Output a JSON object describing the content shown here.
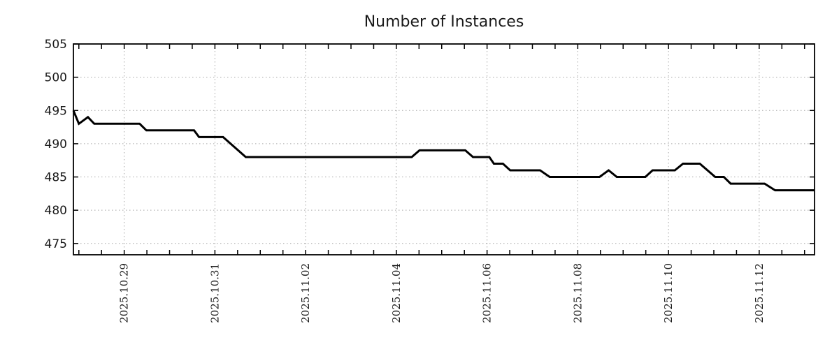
{
  "chart_data": {
    "type": "line",
    "title": "Number of Instances",
    "x_axis": {
      "unit": "days since 2025-10-27 00:00",
      "range": [
        0.88,
        17.22
      ],
      "major_ticks": [
        [
          2,
          "2025.10.29"
        ],
        [
          4,
          "2025.10.31"
        ],
        [
          6,
          "2025.11.02"
        ],
        [
          8,
          "2025.11.04"
        ],
        [
          10,
          "2025.11.06"
        ],
        [
          12,
          "2025.11.08"
        ],
        [
          14,
          "2025.11.10"
        ],
        [
          16,
          "2025.11.12"
        ]
      ],
      "minor_tick_interval_days": 0.5
    },
    "y_axis": {
      "range": [
        473.3,
        505
      ],
      "ticks": [
        475,
        480,
        485,
        490,
        495,
        500,
        505
      ]
    },
    "grid": {
      "style": "dotted",
      "color": "#a6a6a6",
      "on": true
    },
    "legend": "none",
    "series": [
      {
        "name": "Number of Instances",
        "color": "#000000",
        "points": [
          [
            0.88,
            495
          ],
          [
            1.0,
            493
          ],
          [
            1.2,
            494
          ],
          [
            1.34,
            493
          ],
          [
            2.34,
            493
          ],
          [
            2.49,
            492
          ],
          [
            3.54,
            492
          ],
          [
            3.65,
            491
          ],
          [
            4.18,
            491
          ],
          [
            4.68,
            488
          ],
          [
            8.34,
            488
          ],
          [
            8.51,
            489
          ],
          [
            9.52,
            489
          ],
          [
            9.69,
            488
          ],
          [
            10.05,
            488
          ],
          [
            10.15,
            487
          ],
          [
            10.35,
            487
          ],
          [
            10.51,
            486
          ],
          [
            11.17,
            486
          ],
          [
            11.38,
            485
          ],
          [
            12.48,
            485
          ],
          [
            12.68,
            486
          ],
          [
            12.86,
            485
          ],
          [
            13.49,
            485
          ],
          [
            13.65,
            486
          ],
          [
            14.14,
            486
          ],
          [
            14.32,
            487
          ],
          [
            14.69,
            487
          ],
          [
            15.03,
            485
          ],
          [
            15.22,
            485
          ],
          [
            15.37,
            484
          ],
          [
            16.12,
            484
          ],
          [
            16.35,
            483
          ],
          [
            17.22,
            483
          ]
        ]
      }
    ]
  }
}
